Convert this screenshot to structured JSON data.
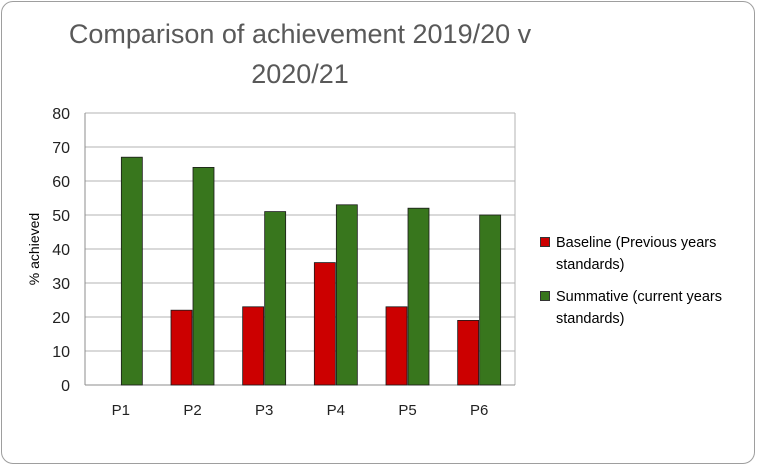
{
  "chart_data": {
    "type": "bar",
    "title": "Comparison of achievement 2019/20 v 2020/21",
    "xlabel": "",
    "ylabel": "% achieved",
    "ylim": [
      0,
      80
    ],
    "yticks": [
      0,
      10,
      20,
      30,
      40,
      50,
      60,
      70,
      80
    ],
    "categories": [
      "P1",
      "P2",
      "P3",
      "P4",
      "P5",
      "P6"
    ],
    "series": [
      {
        "name": "Baseline (Previous years standards)",
        "color": "#cc0000",
        "values": [
          0,
          22,
          23,
          36,
          23,
          19
        ]
      },
      {
        "name": "Summative (current years standards)",
        "color": "#38761d",
        "values": [
          67,
          64,
          51,
          53,
          52,
          50
        ]
      }
    ],
    "grid": true,
    "legend_position": "right"
  }
}
